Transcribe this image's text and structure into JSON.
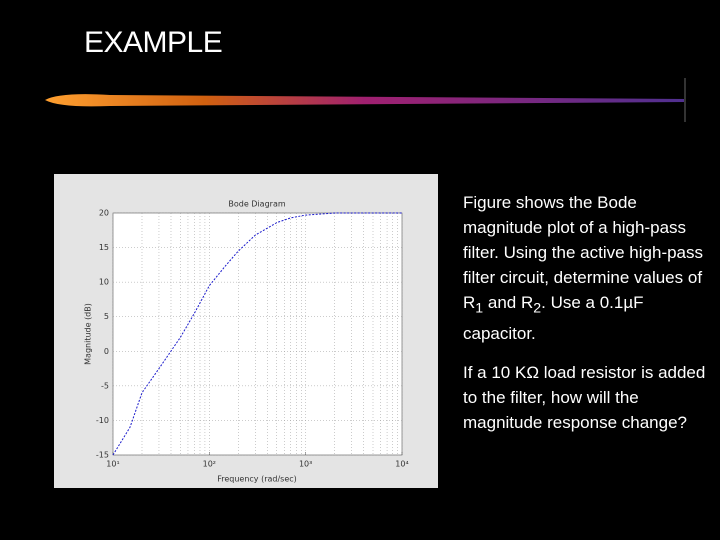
{
  "title": "EXAMPLE",
  "paragraphs": [
    [
      "Figure shows the Bode magnitude plot of a high-pass filter. Using the active high-pass filter circuit, determine values of R",
      "1",
      " and R",
      "2",
      ". Use a 0.1µF capacitor."
    ],
    [
      "If a 10 KΩ load resistor is added to the filter, how will the magnitude response change?"
    ]
  ],
  "chart_data": {
    "type": "line",
    "title": "Bode Diagram",
    "x_label": "Frequency (rad/sec)",
    "y_label": "Magnitude (dB)",
    "x": [
      10,
      15,
      20,
      30,
      50,
      70,
      100,
      150,
      200,
      300,
      500,
      700,
      1000,
      2000,
      5000,
      10000
    ],
    "values": [
      -15,
      -11,
      -6,
      -2.5,
      2,
      5.5,
      9.5,
      12.5,
      14.5,
      16.8,
      18.6,
      19.3,
      19.7,
      20,
      20,
      20
    ],
    "color": "#1a1acc",
    "log_x": true,
    "grid": true,
    "xlim": [
      10,
      10000
    ],
    "xticks": [
      {
        "value": 10,
        "label": "10¹"
      },
      {
        "value": 100,
        "label": "10²"
      },
      {
        "value": 1000,
        "label": "10³"
      },
      {
        "value": 10000,
        "label": "10⁴"
      }
    ],
    "ylim": [
      -15,
      20
    ],
    "yticks": [
      -15,
      -10,
      -5,
      0,
      5,
      10,
      15,
      20
    ]
  }
}
